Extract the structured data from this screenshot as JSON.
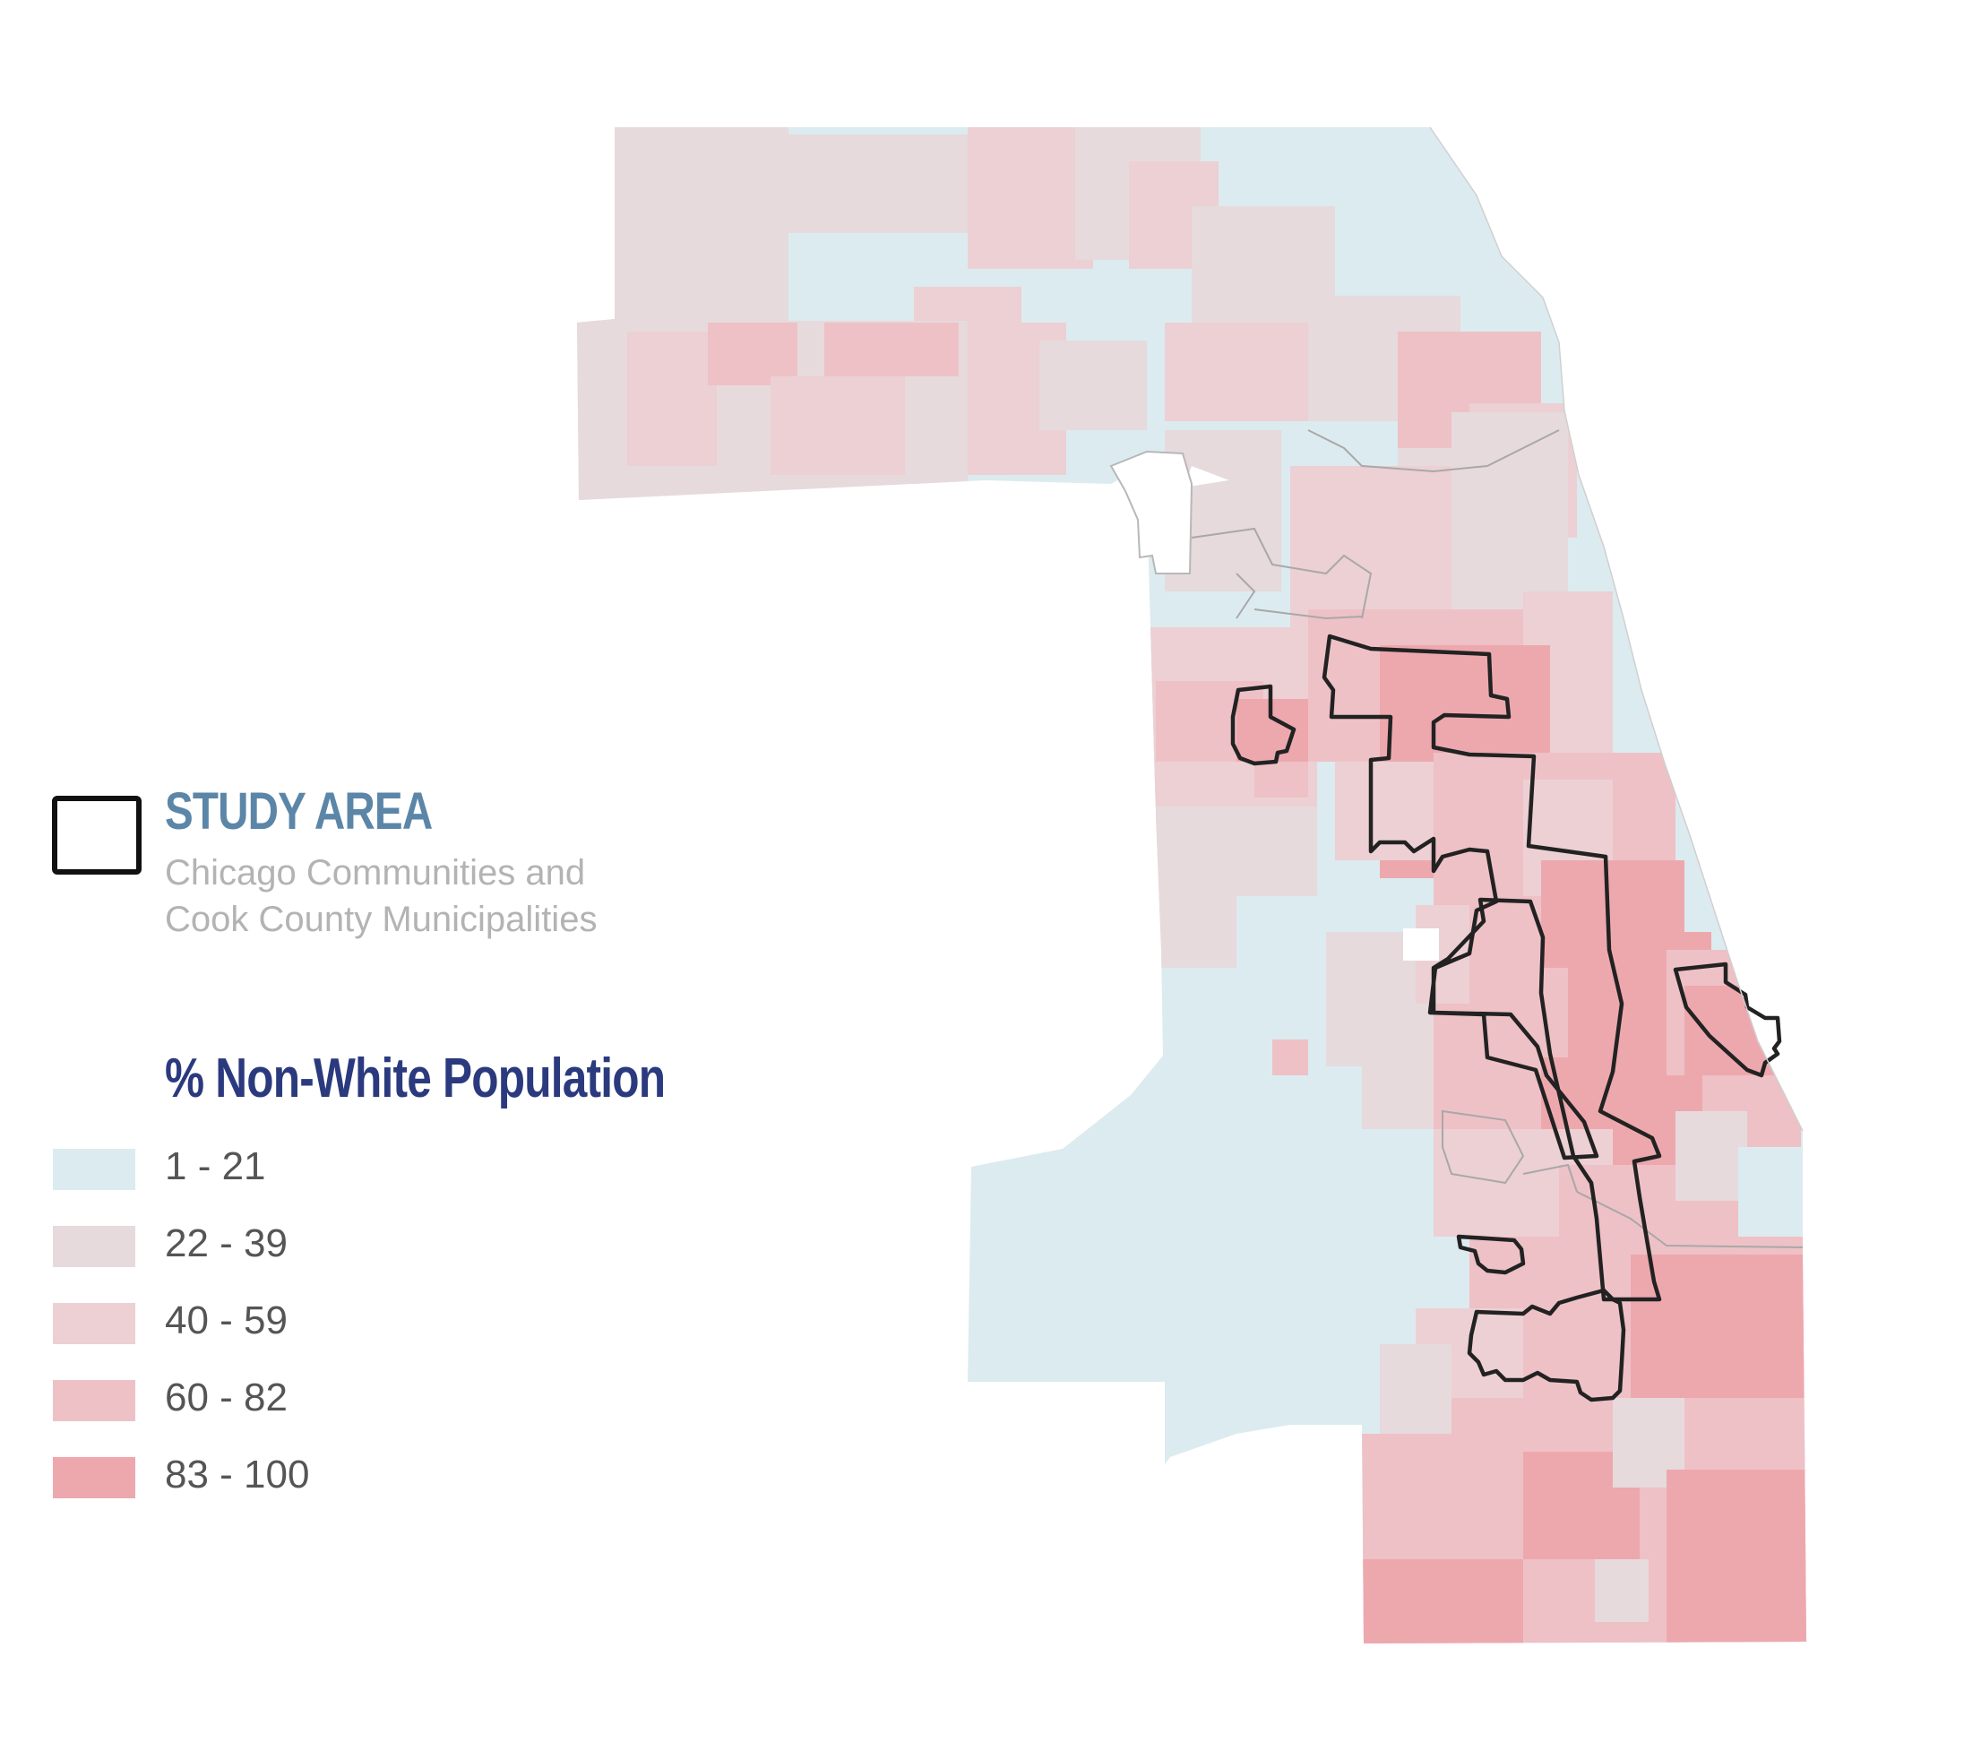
{
  "colors": {
    "study_area_title": "#5b86a8",
    "pop_title": "#2b3a7e",
    "study_outline": "#111111",
    "boundary": "#9a9a9a"
  },
  "legend": {
    "study_area": {
      "title": "STUDY AREA",
      "subtitle_line1": "Chicago Communities and",
      "subtitle_line2": "Cook County Municipalities"
    },
    "population": {
      "title": "% Non-White Population",
      "classes": [
        {
          "label": "1 - 21",
          "color": "#dcebef"
        },
        {
          "label": "22 - 39",
          "color": "#e6dadc"
        },
        {
          "label": "40 - 59",
          "color": "#ecd0d4"
        },
        {
          "label": "60 - 82",
          "color": "#eec1c6"
        },
        {
          "label": "83 - 100",
          "color": "#eda8ae"
        }
      ]
    }
  }
}
